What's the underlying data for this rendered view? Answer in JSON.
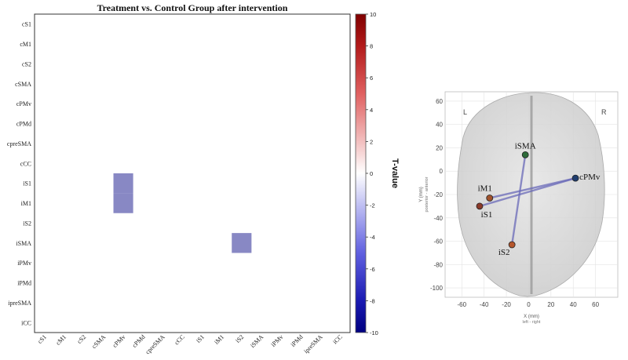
{
  "chart_data": [
    {
      "type": "heatmap",
      "title": "Treatment vs. Control Group after intervention",
      "row_labels": [
        "cS1",
        "cM1",
        "cS2",
        "cSMA",
        "cPMv",
        "cPMd",
        "cpreSMA",
        "cCC",
        "iS1",
        "iM1",
        "iS2",
        "iSMA",
        "iPMv",
        "iPMd",
        "ipreSMA",
        "iCC"
      ],
      "col_labels": [
        "cS1",
        "cM1",
        "cS2",
        "cSMA",
        "cPMv",
        "cPMd",
        "cpreSMA",
        "cCC",
        "iS1",
        "iM1",
        "iS2",
        "iSMA",
        "iPMv",
        "iPMd",
        "ipreSMA",
        "iCC"
      ],
      "cells": [
        {
          "row": "iS1",
          "col": "cPMv",
          "value": -2.5
        },
        {
          "row": "iM1",
          "col": "cPMv",
          "value": -2.5
        },
        {
          "row": "iSMA",
          "col": "iS2",
          "value": -2.5
        }
      ],
      "colorbar": {
        "label": "T-value",
        "min": -10,
        "max": 10,
        "ticks": [
          10,
          8,
          6,
          4,
          2,
          0,
          -2,
          -4,
          -6,
          -8,
          -10
        ],
        "low_color": "#000080",
        "mid_color": "#ffffff",
        "high_color": "#800000"
      }
    },
    {
      "type": "scatter",
      "xlabel": "X (mm)",
      "xsublabel": "left - right",
      "ylabel": "Y (mm)",
      "ysublabel": "posterior - anterior",
      "xlim": [
        -75,
        80
      ],
      "ylim": [
        -108,
        68
      ],
      "xticks": [
        -60,
        -40,
        -20,
        0,
        20,
        40,
        60
      ],
      "yticks": [
        60,
        40,
        20,
        0,
        -20,
        -40,
        -60,
        -80,
        -100
      ],
      "hemisphere_left": "L",
      "hemisphere_right": "R",
      "nodes": [
        {
          "name": "iSMA",
          "x": -3,
          "y": 14,
          "color": "#2e6b3a"
        },
        {
          "name": "cPMv",
          "x": 42,
          "y": -6,
          "color": "#1f3d6e"
        },
        {
          "name": "iM1",
          "x": -35,
          "y": -23,
          "color": "#a0522d"
        },
        {
          "name": "iS1",
          "x": -44,
          "y": -30,
          "color": "#8b3a2a"
        },
        {
          "name": "iS2",
          "x": -15,
          "y": -63,
          "color": "#b5562c"
        }
      ],
      "edges": [
        [
          "cPMv",
          "iS1"
        ],
        [
          "cPMv",
          "iM1"
        ],
        [
          "iSMA",
          "iS2"
        ]
      ]
    }
  ]
}
